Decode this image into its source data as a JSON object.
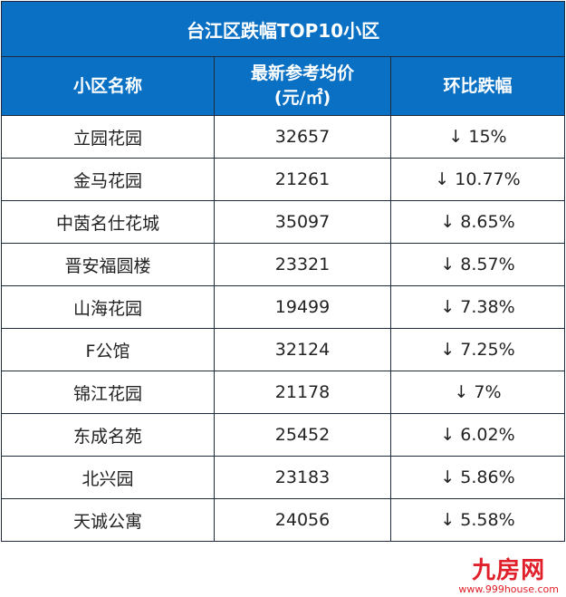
{
  "title": "台江区跌幅TOP10小区",
  "columns": [
    "小区名称",
    "最新参考均价",
    "(元/㎡)",
    "环比跌幅"
  ],
  "rows": [
    {
      "name": "立园花园",
      "price": "32657",
      "change": "↓ 15%"
    },
    {
      "name": "金马花园",
      "price": "21261",
      "change": "↓ 10.77%"
    },
    {
      "name": "中茵名仕花城",
      "price": "35097",
      "change": "↓ 8.65%"
    },
    {
      "name": "晋安福圆楼",
      "price": "23321",
      "change": "↓ 8.57%"
    },
    {
      "name": "山海花园",
      "price": "19499",
      "change": "↓ 7.38%"
    },
    {
      "name": "F公馆",
      "price": "32124",
      "change": "↓ 7.25%"
    },
    {
      "name": "锦江花园",
      "price": "21178",
      "change": "↓ 7%"
    },
    {
      "name": "东成名苑",
      "price": "25452",
      "change": "↓ 6.02%"
    },
    {
      "name": "北兴园",
      "price": "23183",
      "change": "↓ 5.86%"
    },
    {
      "name": "天诚公寓",
      "price": "24056",
      "change": "↓ 5.58%"
    }
  ],
  "watermark": {
    "logo": "九房网",
    "url": "www.999house.com"
  },
  "colors": {
    "header_bg": "#0a70c4",
    "watermark": "#e0202a"
  }
}
